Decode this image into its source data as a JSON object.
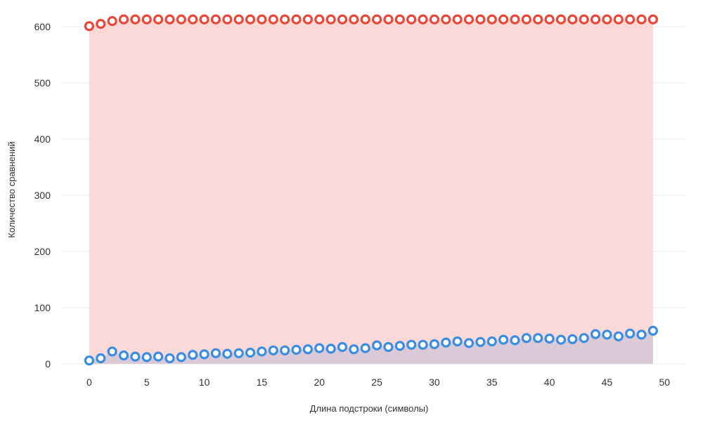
{
  "chart_data": {
    "type": "scatter",
    "title": "",
    "xlabel": "Длина подстроки (символы)",
    "ylabel": "Количество сравнений",
    "xlim": [
      -2.5,
      52
    ],
    "ylim": [
      0,
      620
    ],
    "xticks": [
      0,
      5,
      10,
      15,
      20,
      25,
      30,
      35,
      40,
      45,
      50
    ],
    "yticks": [
      0,
      100,
      200,
      300,
      400,
      500,
      600
    ],
    "grid": true,
    "legend": "none",
    "x": [
      0,
      1,
      2,
      3,
      4,
      5,
      6,
      7,
      8,
      9,
      10,
      11,
      12,
      13,
      14,
      15,
      16,
      17,
      18,
      19,
      20,
      21,
      22,
      23,
      24,
      25,
      26,
      27,
      28,
      29,
      30,
      31,
      32,
      33,
      34,
      35,
      36,
      37,
      38,
      39,
      40,
      41,
      42,
      43,
      44,
      45,
      46,
      47,
      48,
      49
    ],
    "series": [
      {
        "color": "#e8473b",
        "fill": "#fcd9d9",
        "values": [
          601,
          605,
          610,
          613,
          613,
          613,
          613,
          613,
          613,
          613,
          613,
          613,
          613,
          613,
          613,
          613,
          613,
          613,
          613,
          613,
          613,
          613,
          613,
          613,
          613,
          613,
          613,
          613,
          613,
          613,
          613,
          613,
          613,
          613,
          613,
          613,
          613,
          613,
          613,
          613,
          613,
          613,
          613,
          613,
          613,
          613,
          613,
          613,
          613,
          613
        ]
      },
      {
        "color": "#3b8de0",
        "fill": "#d8c9d8",
        "values": [
          6,
          10,
          22,
          15,
          13,
          12,
          13,
          10,
          12,
          16,
          17,
          19,
          18,
          19,
          20,
          22,
          24,
          24,
          25,
          26,
          28,
          27,
          30,
          26,
          28,
          33,
          30,
          32,
          34,
          34,
          35,
          38,
          40,
          37,
          39,
          40,
          43,
          42,
          46,
          46,
          45,
          43,
          44,
          46,
          53,
          52,
          49,
          54,
          52,
          59
        ]
      }
    ]
  }
}
